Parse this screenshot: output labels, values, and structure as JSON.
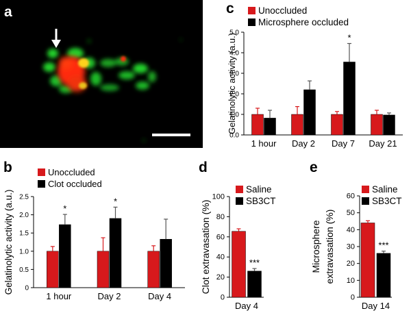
{
  "panel_labels": {
    "a": "a",
    "b": "b",
    "c": "c",
    "d": "d",
    "e": "e"
  },
  "colors": {
    "red": "#d7191c",
    "black": "#000000",
    "micro_green": "#22d12a",
    "micro_red": "#ff2a10",
    "micro_yellow": "#ffd21a"
  },
  "chart_data": [
    {
      "panel": "b",
      "type": "bar",
      "ylabel": "Gelatinolytic activity (a.u.)",
      "ylim": [
        0,
        2.5
      ],
      "yticks": [
        "0",
        "0.5",
        "1.0",
        "1.5",
        "2.0",
        "2.5"
      ],
      "categories": [
        "1 hour",
        "Day 2",
        "Day 4"
      ],
      "legend": [
        "Unoccluded",
        "Clot occluded"
      ],
      "legend_position": "top-left",
      "series": [
        {
          "name": "Unoccluded",
          "color": "#d7191c",
          "values": [
            1.0,
            1.0,
            1.0
          ],
          "errors": [
            0.13,
            0.37,
            0.15
          ]
        },
        {
          "name": "Clot occluded",
          "color": "#000000",
          "values": [
            1.73,
            1.9,
            1.33
          ],
          "errors": [
            0.28,
            0.31,
            0.55
          ]
        }
      ],
      "annotations": [
        {
          "category": "1 hour",
          "series": "Clot occluded",
          "text": "*"
        },
        {
          "category": "Day 2",
          "series": "Clot occluded",
          "text": "*"
        }
      ]
    },
    {
      "panel": "c",
      "type": "bar",
      "ylabel": "Gelatinolytic activity (a.u.)",
      "ylim": [
        0,
        5.0
      ],
      "yticks": [
        "0.0",
        "1.0",
        "2.0",
        "3.0",
        "4.0",
        "5.0"
      ],
      "categories": [
        "1 hour",
        "Day 2",
        "Day 7",
        "Day 21"
      ],
      "legend": [
        "Unoccluded",
        "Microsphere occluded"
      ],
      "legend_position": "top-left",
      "series": [
        {
          "name": "Unoccluded",
          "color": "#d7191c",
          "values": [
            1.0,
            1.0,
            1.0,
            1.0
          ],
          "errors": [
            0.3,
            0.38,
            0.14,
            0.2
          ]
        },
        {
          "name": "Microsphere occluded",
          "color": "#000000",
          "values": [
            0.82,
            2.2,
            3.55,
            0.97
          ],
          "errors": [
            0.38,
            0.43,
            0.9,
            0.1
          ]
        }
      ],
      "annotations": [
        {
          "category": "Day 7",
          "series": "Microsphere occluded",
          "text": "*"
        }
      ]
    },
    {
      "panel": "d",
      "type": "bar",
      "ylabel": "Clot  extravasation (%)",
      "ylim": [
        0,
        100
      ],
      "yticks": [
        "0",
        "20",
        "40",
        "60",
        "80",
        "100"
      ],
      "categories": [
        "Day 4"
      ],
      "legend": [
        "Saline",
        "SB3CT"
      ],
      "legend_position": "top-right",
      "series": [
        {
          "name": "Saline",
          "color": "#d7191c",
          "values": [
            65.5
          ],
          "errors": [
            2.5
          ]
        },
        {
          "name": "SB3CT",
          "color": "#000000",
          "values": [
            26
          ],
          "errors": [
            2.5
          ]
        }
      ],
      "annotations": [
        {
          "category": "Day 4",
          "series": "SB3CT",
          "text": "***"
        }
      ]
    },
    {
      "panel": "e",
      "type": "bar",
      "ylabel": [
        "Microsphere",
        "extravasation (%)"
      ],
      "ylim": [
        0,
        60
      ],
      "yticks": [
        "0",
        "10",
        "20",
        "30",
        "40",
        "50",
        "60"
      ],
      "categories": [
        "Day 14"
      ],
      "legend": [
        "Saline",
        "SB3CT"
      ],
      "legend_position": "top-right",
      "series": [
        {
          "name": "Saline",
          "color": "#d7191c",
          "values": [
            44
          ],
          "errors": [
            1.3
          ]
        },
        {
          "name": "SB3CT",
          "color": "#000000",
          "values": [
            26
          ],
          "errors": [
            1.3
          ]
        }
      ],
      "annotations": [
        {
          "category": "Day 14",
          "series": "SB3CT",
          "text": "***"
        }
      ]
    }
  ]
}
